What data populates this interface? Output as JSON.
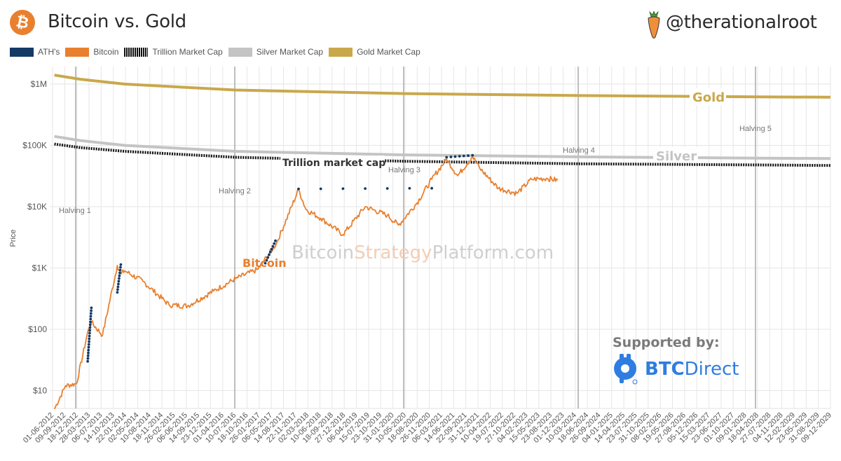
{
  "header": {
    "title": "Bitcoin vs. Gold",
    "handle": "@therationalroot",
    "logo_icon": "bitcoin-icon",
    "handle_icon": "carrot-icon"
  },
  "legend": [
    {
      "label": "ATH's",
      "color": "#163a66",
      "style": "solid"
    },
    {
      "label": "Bitcoin",
      "color": "#e8802f",
      "style": "solid"
    },
    {
      "label": "Trillion Market Cap",
      "color": "#111111",
      "style": "dotted"
    },
    {
      "label": "Silver Market Cap",
      "color": "#c4c4c4",
      "style": "solid"
    },
    {
      "label": "Gold Market Cap",
      "color": "#c9a84c",
      "style": "solid"
    }
  ],
  "annotations": {
    "gold": "Gold",
    "silver": "Silver",
    "trillion": "Trillion market cap",
    "bitcoin": "Bitcoin",
    "watermark_a": "Bitcoin",
    "watermark_b": "Strategy",
    "watermark_c": "Platform.com",
    "halvings": [
      "Halving 1",
      "Halving 2",
      "Halving 3",
      "Halving 4",
      "Halving 5"
    ]
  },
  "sponsor": {
    "label": "Supported by:",
    "brand_bold": "BTC",
    "brand_rest": "Direct",
    "icon": "btcdirect-logo-icon"
  },
  "colors": {
    "bitcoin": "#e8802f",
    "ath": "#163a66",
    "gold": "#c9a84c",
    "silver": "#c4c4c4",
    "trillion": "#111111",
    "sponsor": "#2f7de1"
  },
  "chart_data": {
    "type": "line",
    "title": "Bitcoin vs. Gold",
    "xlabel": "",
    "ylabel": "Price",
    "yscale": "log",
    "ylim": [
      5,
      2000000
    ],
    "y_ticks": [
      "$10",
      "$100",
      "$1K",
      "$10K",
      "$100K",
      "$1M"
    ],
    "grid": true,
    "legend_position": "top-left",
    "x_ticks": [
      "01-06-2012",
      "09-09-2012",
      "18-12-2012",
      "28-03-2013",
      "06-07-2013",
      "14-10-2013",
      "22-01-2014",
      "02-05-2014",
      "10-08-2014",
      "18-11-2014",
      "26-02-2015",
      "06-06-2015",
      "14-09-2015",
      "23-12-2015",
      "01-04-2016",
      "10-07-2016",
      "18-10-2016",
      "26-01-2017",
      "06-05-2017",
      "14-08-2017",
      "22-11-2017",
      "02-03-2018",
      "10-06-2018",
      "18-09-2018",
      "27-12-2018",
      "06-04-2019",
      "15-07-2019",
      "23-10-2019",
      "31-01-2020",
      "10-05-2020",
      "18-08-2020",
      "26-11-2020",
      "06-03-2021",
      "14-06-2021",
      "22-09-2021",
      "31-12-2021",
      "10-04-2022",
      "19-07-2022",
      "27-10-2022",
      "04-02-2023",
      "15-05-2023",
      "23-08-2023",
      "01-12-2023",
      "10-03-2024",
      "18-06-2024",
      "26-09-2024",
      "04-01-2025",
      "14-04-2025",
      "23-07-2025",
      "31-10-2025",
      "08-02-2026",
      "19-05-2026",
      "27-08-2026",
      "05-12-2026",
      "15-03-2027",
      "23-06-2027",
      "01-10-2027",
      "09-01-2028",
      "18-04-2028",
      "27-07-2028",
      "04-11-2028",
      "12-02-2029",
      "23-05-2029",
      "31-08-2029",
      "09-12-2029"
    ],
    "halvings": [
      {
        "label": "Halving 1",
        "date": "28-11-2012"
      },
      {
        "label": "Halving 2",
        "date": "09-07-2016"
      },
      {
        "label": "Halving 3",
        "date": "11-05-2020"
      },
      {
        "label": "Halving 4",
        "date": "20-04-2024"
      },
      {
        "label": "Halving 5",
        "date": "04-2028"
      }
    ],
    "series": [
      {
        "name": "Gold Market Cap",
        "x": [
          "2012-06",
          "2013-01",
          "2014-01",
          "2016-07",
          "2020-05",
          "2024-04",
          "2028-04",
          "2029-12"
        ],
        "values": [
          1400000,
          1200000,
          1000000,
          800000,
          700000,
          650000,
          620000,
          610000
        ]
      },
      {
        "name": "Silver Market Cap",
        "x": [
          "2012-06",
          "2013-01",
          "2014-01",
          "2016-07",
          "2020-05",
          "2024-04",
          "2028-04",
          "2029-12"
        ],
        "values": [
          140000,
          120000,
          100000,
          80000,
          70000,
          65000,
          62000,
          61000
        ]
      },
      {
        "name": "Trillion Market Cap",
        "x": [
          "2012-06",
          "2013-01",
          "2014-01",
          "2016-07",
          "2020-05",
          "2024-04",
          "2028-04",
          "2029-12"
        ],
        "values": [
          105000,
          92000,
          80000,
          64000,
          55000,
          50000,
          48000,
          47000
        ]
      },
      {
        "name": "Bitcoin",
        "x": [
          "2012-06",
          "2012-09",
          "2012-12",
          "2013-03",
          "2013-04",
          "2013-07",
          "2013-11",
          "2013-12",
          "2014-01",
          "2014-06",
          "2015-01",
          "2015-06",
          "2016-01",
          "2016-07",
          "2017-01",
          "2017-06",
          "2017-12",
          "2018-02",
          "2018-06",
          "2018-12",
          "2019-06",
          "2019-12",
          "2020-03",
          "2020-08",
          "2020-12",
          "2021-04",
          "2021-07",
          "2021-11",
          "2022-01",
          "2022-06",
          "2022-11",
          "2023-03",
          "2023-07",
          "2023-10"
        ],
        "values": [
          5,
          12,
          13,
          90,
          130,
          80,
          1100,
          800,
          900,
          600,
          250,
          240,
          420,
          670,
          950,
          2500,
          19000,
          9000,
          6500,
          3500,
          10000,
          7200,
          5000,
          11500,
          28000,
          60000,
          32000,
          66000,
          42000,
          20000,
          16500,
          28000,
          29000,
          27000
        ]
      },
      {
        "name": "ATH's",
        "x": [
          "2013-03",
          "2013-04",
          "2013-11",
          "2013-12",
          "2017-03",
          "2017-06",
          "2017-12",
          "2020-12",
          "2021-04",
          "2021-11"
        ],
        "values": [
          30,
          230,
          400,
          1200,
          1200,
          3000,
          19500,
          20000,
          64000,
          69000
        ]
      }
    ]
  }
}
